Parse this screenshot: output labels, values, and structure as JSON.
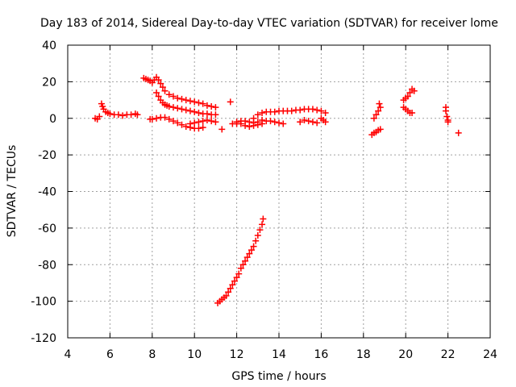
{
  "chart_data": {
    "type": "scatter",
    "title": "Day 183 of 2014, Sidereal Day-to-day VTEC variation (SDTVAR) for receiver lome",
    "xlabel": "GPS time / hours",
    "ylabel": "SDTVAR / TECUs",
    "xlim": [
      4,
      24
    ],
    "ylim": [
      -120,
      40
    ],
    "xticks": [
      4,
      6,
      8,
      10,
      12,
      14,
      16,
      18,
      20,
      22,
      24
    ],
    "yticks": [
      -120,
      -100,
      -80,
      -60,
      -40,
      -20,
      0,
      20,
      40
    ],
    "grid": true,
    "marker": "plus",
    "color": "#ff0000",
    "series": [
      {
        "name": "SDTVAR",
        "points": [
          [
            5.3,
            0.0
          ],
          [
            5.4,
            -0.5
          ],
          [
            5.5,
            1.0
          ],
          [
            5.6,
            8.0
          ],
          [
            5.65,
            6.5
          ],
          [
            5.7,
            5.0
          ],
          [
            5.8,
            3.5
          ],
          [
            5.9,
            3.0
          ],
          [
            6.0,
            2.5
          ],
          [
            6.2,
            2.0
          ],
          [
            6.4,
            2.0
          ],
          [
            6.6,
            1.5
          ],
          [
            6.8,
            2.0
          ],
          [
            7.0,
            2.0
          ],
          [
            7.2,
            2.5
          ],
          [
            7.3,
            2.0
          ],
          [
            7.6,
            22.0
          ],
          [
            7.7,
            21.5
          ],
          [
            7.8,
            21.0
          ],
          [
            7.9,
            20.5
          ],
          [
            8.0,
            19.5
          ],
          [
            8.1,
            21.0
          ],
          [
            8.2,
            22.5
          ],
          [
            8.3,
            21.0
          ],
          [
            8.4,
            19.0
          ],
          [
            8.5,
            17.0
          ],
          [
            8.6,
            15.0
          ],
          [
            8.8,
            13.0
          ],
          [
            9.0,
            12.0
          ],
          [
            9.2,
            11.0
          ],
          [
            9.4,
            10.5
          ],
          [
            9.6,
            10.0
          ],
          [
            9.8,
            9.5
          ],
          [
            10.0,
            9.0
          ],
          [
            10.2,
            8.5
          ],
          [
            10.4,
            8.0
          ],
          [
            10.6,
            7.0
          ],
          [
            10.8,
            6.5
          ],
          [
            11.0,
            6.0
          ],
          [
            8.2,
            14.0
          ],
          [
            8.3,
            12.0
          ],
          [
            8.4,
            10.0
          ],
          [
            8.5,
            8.5
          ],
          [
            8.6,
            7.5
          ],
          [
            8.7,
            7.0
          ],
          [
            8.8,
            6.5
          ],
          [
            9.0,
            6.0
          ],
          [
            9.2,
            5.5
          ],
          [
            9.4,
            5.0
          ],
          [
            9.6,
            4.5
          ],
          [
            9.8,
            4.0
          ],
          [
            10.0,
            3.5
          ],
          [
            10.2,
            3.0
          ],
          [
            10.4,
            2.5
          ],
          [
            10.6,
            2.5
          ],
          [
            10.8,
            2.0
          ],
          [
            11.0,
            2.0
          ],
          [
            7.9,
            -0.5
          ],
          [
            8.0,
            -0.5
          ],
          [
            8.2,
            0.0
          ],
          [
            8.4,
            0.5
          ],
          [
            8.6,
            0.5
          ],
          [
            8.8,
            -0.5
          ],
          [
            9.0,
            -1.5
          ],
          [
            9.2,
            -2.5
          ],
          [
            9.4,
            -3.5
          ],
          [
            9.6,
            -4.5
          ],
          [
            9.8,
            -5.0
          ],
          [
            10.0,
            -5.5
          ],
          [
            10.2,
            -5.5
          ],
          [
            10.4,
            -5.0
          ],
          [
            9.8,
            -3.0
          ],
          [
            10.0,
            -2.5
          ],
          [
            10.2,
            -2.0
          ],
          [
            10.4,
            -1.5
          ],
          [
            10.6,
            -1.0
          ],
          [
            10.8,
            -1.5
          ],
          [
            11.0,
            -2.0
          ],
          [
            11.7,
            9.0
          ],
          [
            11.3,
            -6.0
          ],
          [
            11.1,
            -101.0
          ],
          [
            11.2,
            -100.0
          ],
          [
            11.3,
            -99.0
          ],
          [
            11.4,
            -98.0
          ],
          [
            11.5,
            -97.0
          ],
          [
            11.6,
            -95.0
          ],
          [
            11.7,
            -93.0
          ],
          [
            11.8,
            -91.0
          ],
          [
            11.9,
            -89.0
          ],
          [
            12.0,
            -87.0
          ],
          [
            12.1,
            -85.0
          ],
          [
            12.2,
            -82.0
          ],
          [
            12.3,
            -80.0
          ],
          [
            12.4,
            -78.0
          ],
          [
            12.5,
            -76.0
          ],
          [
            12.6,
            -74.0
          ],
          [
            12.7,
            -72.0
          ],
          [
            12.8,
            -70.0
          ],
          [
            12.9,
            -67.0
          ],
          [
            13.0,
            -64.0
          ],
          [
            13.1,
            -61.0
          ],
          [
            13.2,
            -58.0
          ],
          [
            13.25,
            -55.0
          ],
          [
            11.8,
            -3.0
          ],
          [
            12.0,
            -3.0
          ],
          [
            12.2,
            -3.0
          ],
          [
            12.4,
            -4.0
          ],
          [
            12.6,
            -4.5
          ],
          [
            12.8,
            -4.0
          ],
          [
            13.0,
            -3.5
          ],
          [
            13.2,
            -3.0
          ],
          [
            12.0,
            -2.0
          ],
          [
            12.2,
            -1.5
          ],
          [
            12.4,
            -1.5
          ],
          [
            12.6,
            -2.0
          ],
          [
            12.8,
            -2.5
          ],
          [
            13.0,
            -2.0
          ],
          [
            13.2,
            -1.0
          ],
          [
            13.4,
            -1.5
          ],
          [
            13.6,
            -1.5
          ],
          [
            13.8,
            -2.0
          ],
          [
            14.0,
            -2.5
          ],
          [
            14.2,
            -3.0
          ],
          [
            12.8,
            0.0
          ],
          [
            13.0,
            2.0
          ],
          [
            13.2,
            3.0
          ],
          [
            13.4,
            3.5
          ],
          [
            13.6,
            3.5
          ],
          [
            13.8,
            3.5
          ],
          [
            14.0,
            4.0
          ],
          [
            14.2,
            4.0
          ],
          [
            14.4,
            4.0
          ],
          [
            14.6,
            4.0
          ],
          [
            14.8,
            4.5
          ],
          [
            15.0,
            4.5
          ],
          [
            15.2,
            5.0
          ],
          [
            15.4,
            5.0
          ],
          [
            15.6,
            5.0
          ],
          [
            15.8,
            4.5
          ],
          [
            16.0,
            4.0
          ],
          [
            16.2,
            3.0
          ],
          [
            15.0,
            -2.0
          ],
          [
            15.2,
            -1.0
          ],
          [
            15.4,
            -1.5
          ],
          [
            15.6,
            -2.0
          ],
          [
            15.8,
            -2.5
          ],
          [
            16.0,
            0.0
          ],
          [
            16.1,
            -1.0
          ],
          [
            16.2,
            -2.0
          ],
          [
            18.5,
            0.0
          ],
          [
            18.6,
            2.0
          ],
          [
            18.7,
            4.0
          ],
          [
            18.75,
            8.0
          ],
          [
            18.8,
            6.0
          ],
          [
            18.4,
            -9.0
          ],
          [
            18.5,
            -8.0
          ],
          [
            18.6,
            -7.5
          ],
          [
            18.7,
            -6.5
          ],
          [
            18.8,
            -6.0
          ],
          [
            19.9,
            6.0
          ],
          [
            20.0,
            5.0
          ],
          [
            20.1,
            4.0
          ],
          [
            20.2,
            3.0
          ],
          [
            20.3,
            3.0
          ],
          [
            19.9,
            10.0
          ],
          [
            20.0,
            11.0
          ],
          [
            20.1,
            12.0
          ],
          [
            20.2,
            14.0
          ],
          [
            20.3,
            16.0
          ],
          [
            20.4,
            15.0
          ],
          [
            21.9,
            6.0
          ],
          [
            21.9,
            4.0
          ],
          [
            21.95,
            1.0
          ],
          [
            22.0,
            -1.0
          ],
          [
            22.0,
            -2.0
          ],
          [
            22.5,
            -8.0
          ]
        ]
      }
    ]
  }
}
